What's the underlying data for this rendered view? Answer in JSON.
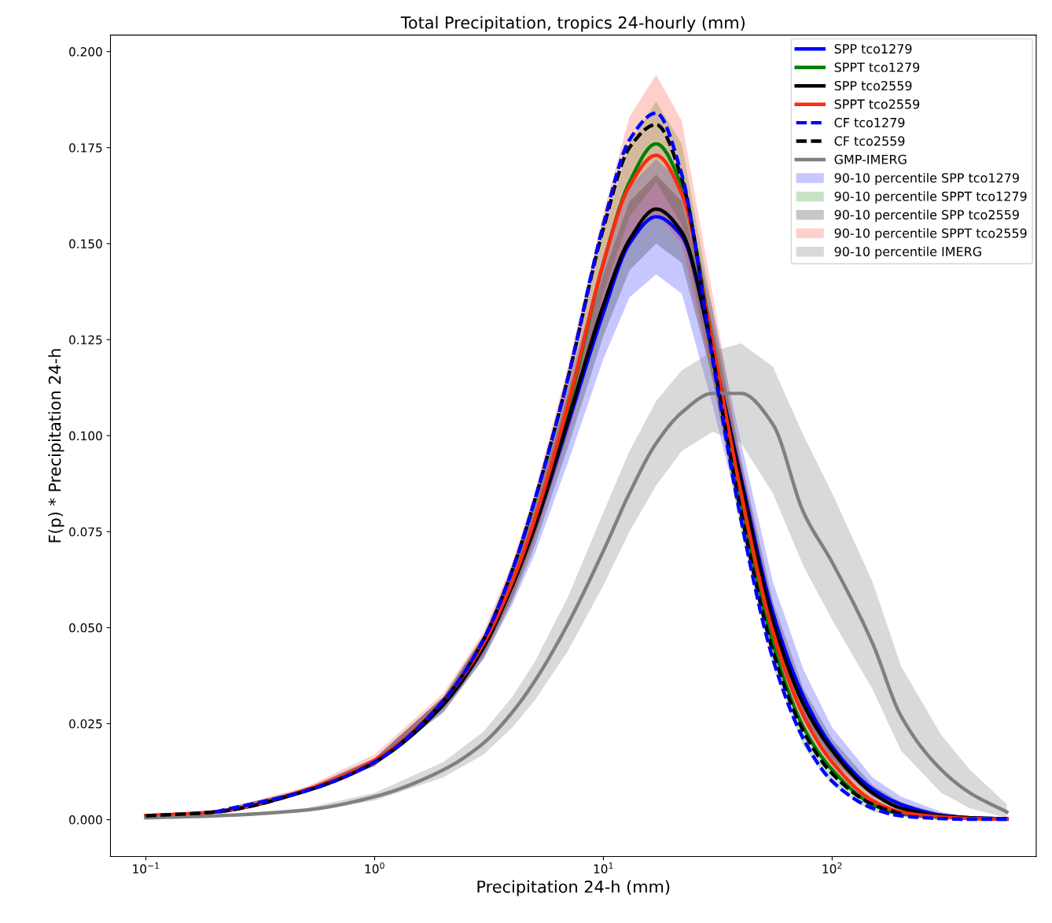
{
  "chart_data": {
    "type": "line",
    "title": "Total Precipitation, tropics 24-hourly (mm)",
    "xlabel": "Precipitation 24-h (mm)",
    "ylabel": "F(p) * Precipitation 24-h",
    "log": "x",
    "grid": false,
    "legend": "top right",
    "xlim": [
      0.07,
      780
    ],
    "ylim": [
      -0.0096,
      0.2043
    ],
    "xticks": [
      {
        "value": 0.1,
        "label": "10$^{−1}$"
      },
      {
        "value": 1,
        "label": "10$^{0}$"
      },
      {
        "value": 10,
        "label": "10$^{1}$"
      },
      {
        "value": 100,
        "label": "10$^{2}$"
      }
    ],
    "yticks": [
      {
        "value": 0,
        "label": "0.000"
      },
      {
        "value": 0.025,
        "label": "0.025"
      },
      {
        "value": 0.05,
        "label": "0.050"
      },
      {
        "value": 0.075,
        "label": "0.075"
      },
      {
        "value": 0.1,
        "label": "0.100"
      },
      {
        "value": 0.125,
        "label": "0.125"
      },
      {
        "value": 0.15,
        "label": "0.150"
      },
      {
        "value": 0.175,
        "label": "0.175"
      },
      {
        "value": 0.2,
        "label": "0.200"
      }
    ],
    "annotations": [
      "90-10 percentile SPP tco1279",
      "90-10 percentile SPPT tco1279",
      "90-10 percentile SPP tco2559",
      "90-10 percentile SPPT tco2559",
      "90-10 percentile IMERG"
    ],
    "x": [
      0.1,
      0.2,
      0.5,
      1,
      2,
      3,
      4,
      5,
      7,
      10,
      13,
      17,
      22,
      30,
      40,
      55,
      75,
      100,
      150,
      200,
      300,
      400,
      580
    ],
    "series": [
      {
        "name": "SPP tco1279",
        "color": "#0000ff",
        "values": [
          null,
          null,
          null,
          null,
          null,
          null,
          0.061,
          0.076,
          0.103,
          0.132,
          0.15,
          0.157,
          0.152,
          0.122,
          0.089,
          0.054,
          0.032,
          0.019,
          0.008,
          0.004,
          0.0012,
          0.0005,
          0.0002
        ],
        "lower": [
          0.0009,
          0.0018,
          0.007,
          0.014,
          0.028,
          0.042,
          0.056,
          0.069,
          0.093,
          0.12,
          0.136,
          0.142,
          0.137,
          0.108,
          0.078,
          0.046,
          0.026,
          0.015,
          0.006,
          0.003,
          0.0008,
          0.0003,
          0.0001
        ],
        "upper": [
          0.0011,
          0.0022,
          0.008,
          0.016,
          0.032,
          0.048,
          0.066,
          0.083,
          0.113,
          0.146,
          0.165,
          0.172,
          0.166,
          0.133,
          0.098,
          0.062,
          0.039,
          0.024,
          0.011,
          0.006,
          0.002,
          0.0008,
          0.0003
        ]
      },
      {
        "name": "SPPT tco1279",
        "color": "#008000",
        "values": [
          null,
          null,
          null,
          null,
          null,
          null,
          null,
          0.077,
          0.107,
          0.145,
          0.166,
          0.176,
          0.165,
          0.124,
          0.083,
          0.046,
          0.024,
          0.013,
          0.004,
          0.0015,
          0.0005,
          null,
          null
        ],
        "lower": [
          0.0009,
          0.0018,
          0.007,
          0.014,
          0.029,
          0.043,
          0.058,
          0.073,
          0.101,
          0.137,
          0.157,
          0.166,
          0.155,
          0.115,
          0.075,
          0.04,
          0.019,
          0.009,
          0.002,
          0.0008,
          0.0002,
          0.0001,
          0
        ],
        "upper": [
          0.0011,
          0.0022,
          0.008,
          0.016,
          0.032,
          0.048,
          0.065,
          0.082,
          0.113,
          0.153,
          0.176,
          0.187,
          0.176,
          0.133,
          0.091,
          0.052,
          0.029,
          0.017,
          0.006,
          0.0025,
          0.001,
          0.0004,
          0.0002
        ]
      },
      {
        "name": "SPP tco2559",
        "color": "#000000",
        "values": [
          0.001,
          0.002,
          0.0075,
          0.015,
          0.03,
          0.045,
          0.061,
          0.076,
          0.104,
          0.134,
          0.151,
          0.159,
          0.153,
          0.122,
          0.088,
          0.052,
          0.03,
          0.018,
          0.007,
          0.003,
          0.001,
          0.0005,
          0.0002
        ],
        "lower": [
          0.0009,
          0.0018,
          0.007,
          0.014,
          0.028,
          0.042,
          0.057,
          0.071,
          0.097,
          0.126,
          0.143,
          0.15,
          0.145,
          0.115,
          0.082,
          0.048,
          0.027,
          0.016,
          0.006,
          0.0025,
          0.0008,
          0.0003,
          0.0001
        ],
        "upper": [
          0.0011,
          0.0022,
          0.008,
          0.016,
          0.032,
          0.048,
          0.065,
          0.081,
          0.111,
          0.142,
          0.161,
          0.168,
          0.161,
          0.129,
          0.094,
          0.057,
          0.034,
          0.021,
          0.009,
          0.0045,
          0.0015,
          0.0007,
          0.0003
        ]
      },
      {
        "name": "SPPT tco2559",
        "color": "#ff2a10",
        "values": [
          0.001,
          0.002,
          0.0078,
          0.0155,
          0.031,
          0.046,
          0.062,
          0.078,
          0.108,
          0.145,
          0.165,
          0.173,
          0.163,
          0.124,
          0.085,
          0.049,
          0.027,
          0.015,
          0.005,
          0.002,
          0.0007,
          0.0003,
          0.0001
        ],
        "lower": [
          0.0009,
          0.0018,
          0.007,
          0.014,
          0.029,
          0.043,
          0.058,
          0.073,
          0.1,
          0.133,
          0.151,
          0.158,
          0.15,
          0.114,
          0.077,
          0.043,
          0.023,
          0.012,
          0.004,
          0.0015,
          0.0005,
          0.0002,
          0
        ],
        "upper": [
          0.0011,
          0.0022,
          0.0085,
          0.017,
          0.033,
          0.049,
          0.067,
          0.085,
          0.118,
          0.158,
          0.183,
          0.194,
          0.182,
          0.137,
          0.093,
          0.055,
          0.031,
          0.018,
          0.007,
          0.003,
          0.001,
          0.0004,
          0.0002
        ]
      },
      {
        "name": "CF tco1279",
        "color": "#0000ff",
        "line_style": "dashed",
        "values": [
          null,
          0.002,
          0.0075,
          0.015,
          0.031,
          0.047,
          0.065,
          0.083,
          0.115,
          0.155,
          0.177,
          0.184,
          0.168,
          0.12,
          0.078,
          0.042,
          0.021,
          0.01,
          0.003,
          0.001,
          0.0003,
          0.0001,
          0.0001
        ]
      },
      {
        "name": "CF tco2559",
        "color": "#000000",
        "line_style": "dashed",
        "values": [
          0.001,
          0.002,
          0.0075,
          0.015,
          0.031,
          0.047,
          0.065,
          0.083,
          0.115,
          0.154,
          0.175,
          0.181,
          0.167,
          0.121,
          0.08,
          0.044,
          0.023,
          0.012,
          0.004,
          0.0015,
          null,
          null,
          null
        ]
      },
      {
        "name": "GMP-IMERG",
        "color": "#808080",
        "values": [
          0.0005,
          0.001,
          0.0025,
          0.006,
          0.013,
          0.02,
          0.028,
          0.036,
          0.051,
          0.07,
          0.085,
          0.098,
          0.106,
          0.111,
          0.111,
          0.103,
          0.08,
          0.067,
          0.046,
          0.027,
          0.013,
          0.007,
          0.002
        ],
        "lower": [
          0.0004,
          0.0008,
          0.002,
          0.005,
          0.011,
          0.017,
          0.024,
          0.031,
          0.044,
          0.061,
          0.075,
          0.087,
          0.096,
          0.101,
          0.098,
          0.085,
          0.066,
          0.052,
          0.034,
          0.018,
          0.007,
          0.003,
          0.0005
        ],
        "upper": [
          0.0006,
          0.0012,
          0.003,
          0.007,
          0.015,
          0.023,
          0.032,
          0.041,
          0.058,
          0.08,
          0.096,
          0.109,
          0.117,
          0.122,
          0.124,
          0.118,
          0.1,
          0.085,
          0.062,
          0.04,
          0.022,
          0.013,
          0.004
        ]
      }
    ]
  }
}
